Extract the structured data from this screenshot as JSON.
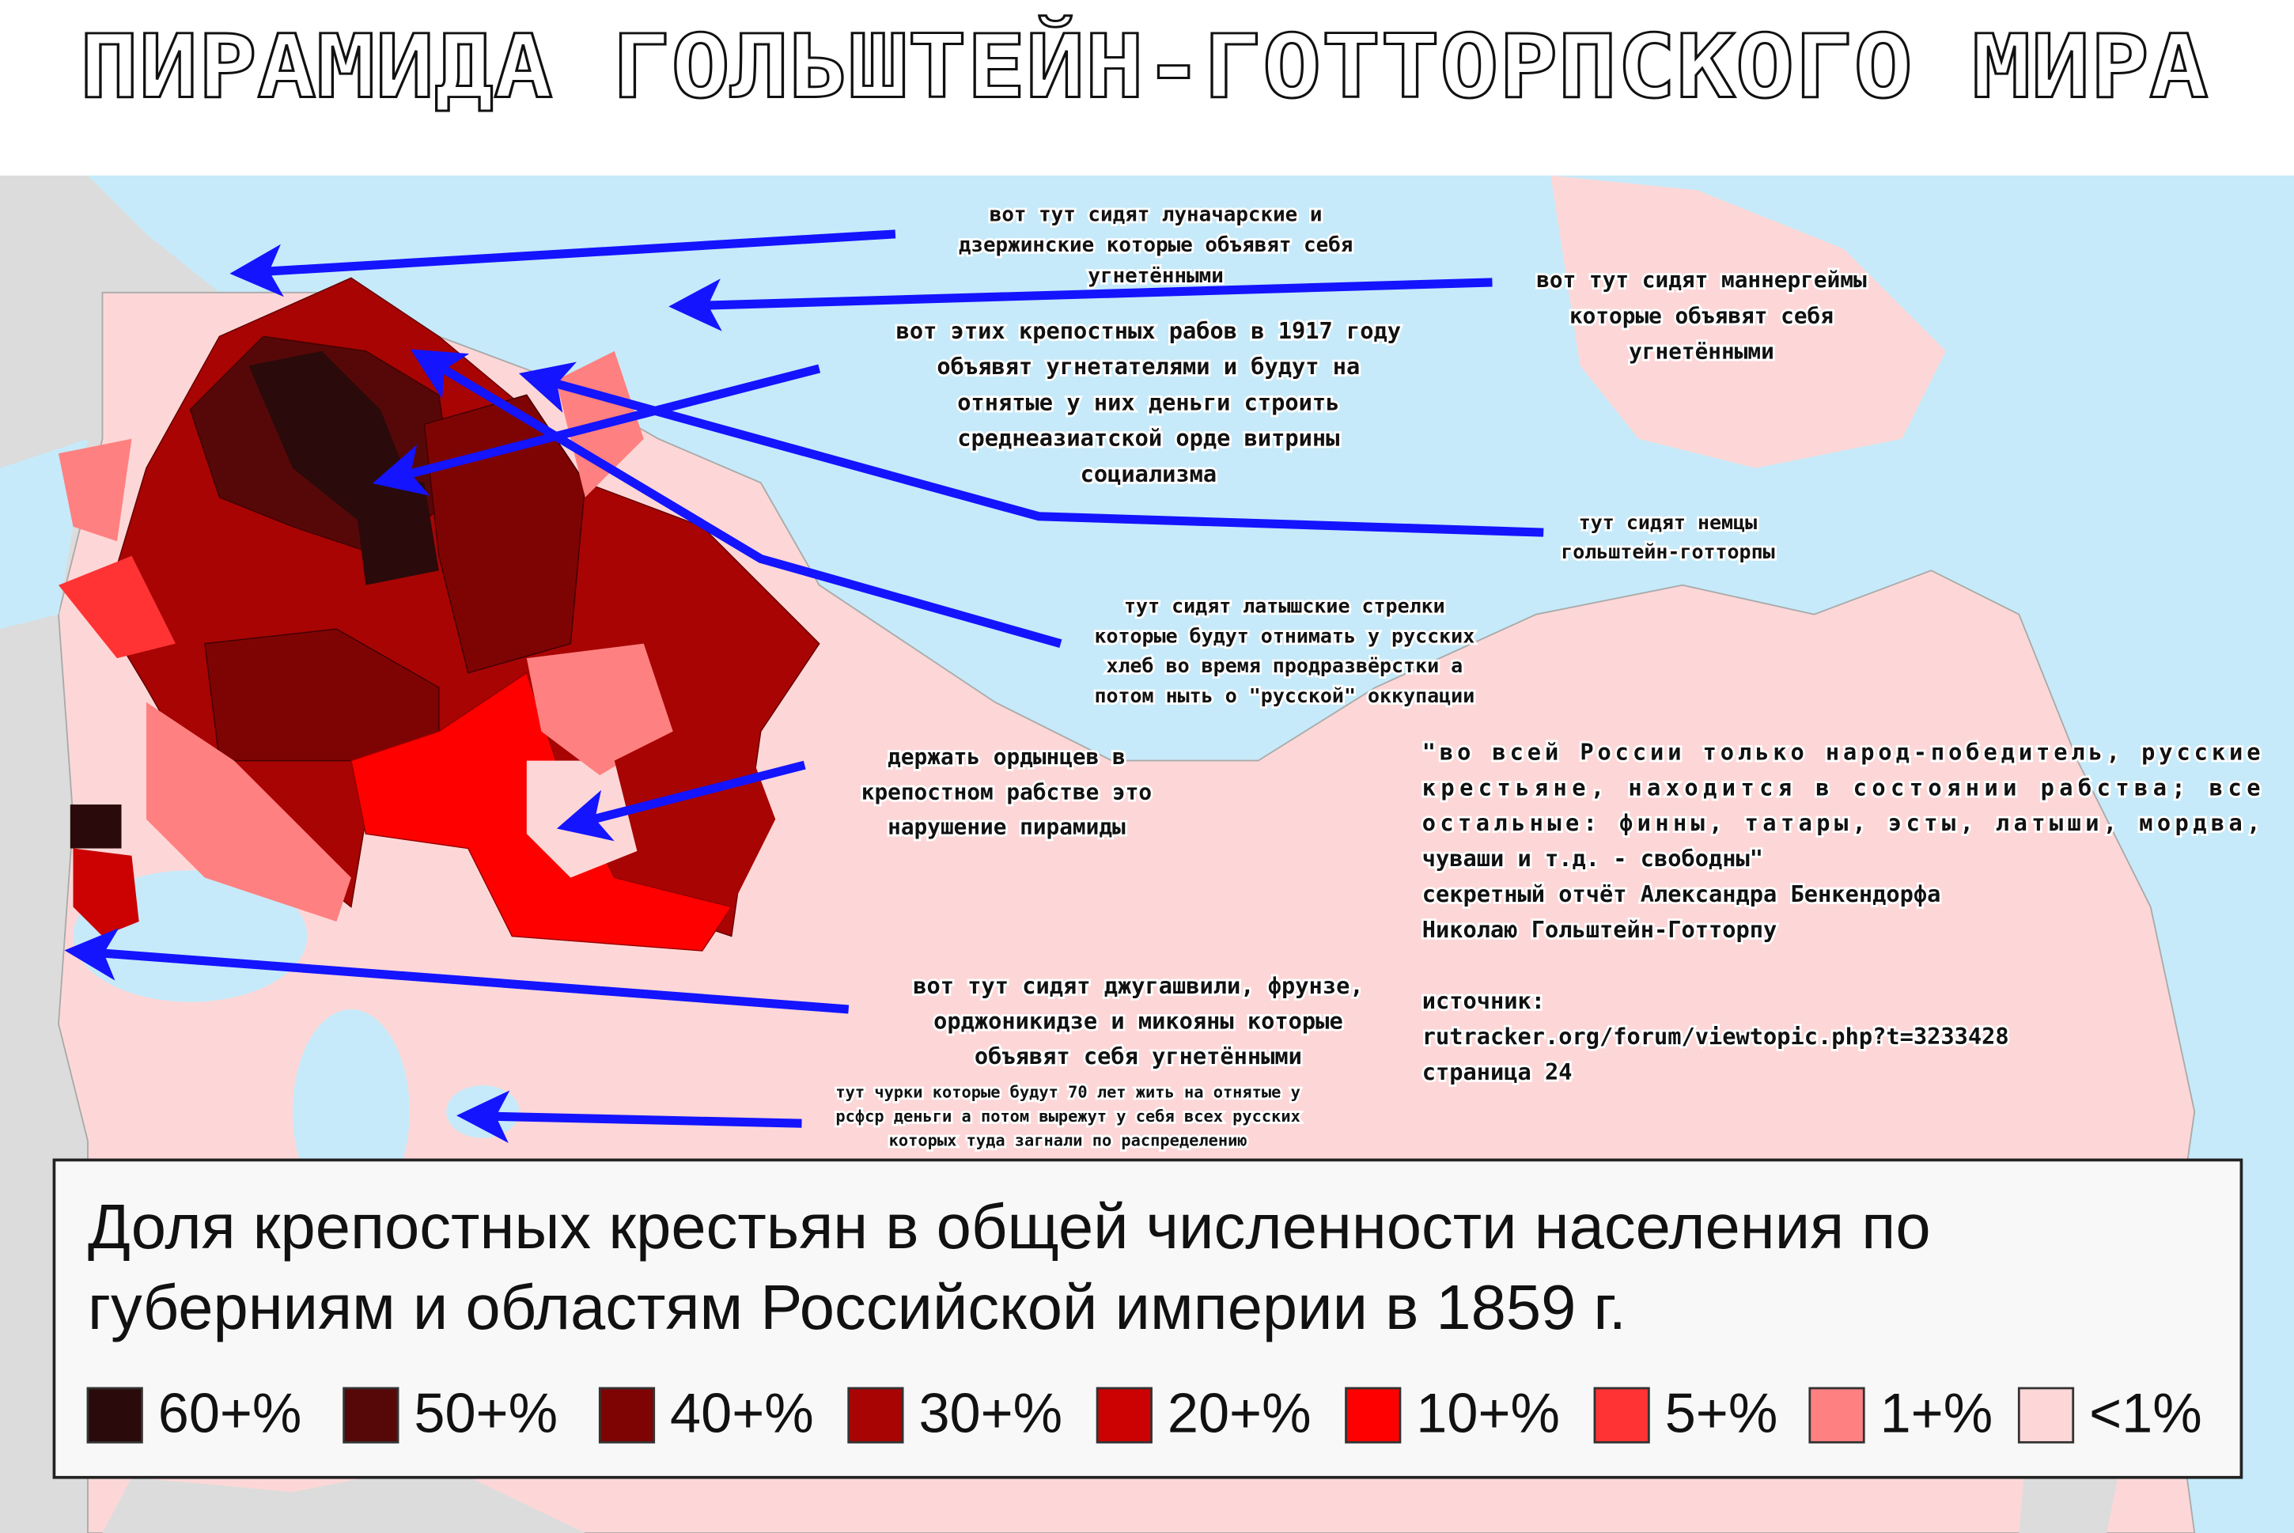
{
  "title": "ПИРАМИДА ГОЛЬШТЕЙН-ГОТТОРПСКОГО МИРА",
  "annotations": [
    {
      "lines": [
        "вот тут сидят луначарские и",
        "дзержинские которые объявят себя",
        "угнетёнными"
      ]
    },
    {
      "lines": [
        "вот тут сидят маннергеймы",
        "которые объявят себя",
        "угнетёнными"
      ]
    },
    {
      "lines": [
        "вот этих крепостных рабов в 1917 году",
        "объявят угнетателями и будут на",
        "отнятые у них деньги строить",
        "среднеазиатской орде витрины",
        "социализма"
      ]
    },
    {
      "lines": [
        "тут сидят немцы",
        "гольштейн-готторпы"
      ]
    },
    {
      "lines": [
        "тут сидят латышские стрелки",
        "которые будут отнимать у русских",
        "хлеб во время продразвёрстки а",
        "потом ныть о \"русской\" оккупации"
      ]
    },
    {
      "lines": [
        "держать ордынцев в",
        "крепостном рабстве это",
        "нарушение пирамиды"
      ]
    },
    {
      "lines": [
        "вот тут сидят джугашвили, фрунзе,",
        "орджоникидзе и микояны которые",
        "объявят себя угнетёнными"
      ]
    },
    {
      "lines": [
        "тут чурки которые будут 70 лет жить на отнятые у",
        "рсфср деньги а потом вырежут у себя всех русских",
        "которых туда загнали по распределению"
      ]
    }
  ],
  "quote": {
    "lines": [
      "\"во всей России только народ-победитель, русские",
      "крестьяне, находится в состоянии рабства; все",
      "остальные: финны, татары, эсты, латыши, мордва,",
      "чуваши и т.д. - свободны\"",
      "секретный отчёт Александра Бенкендорфа",
      "Николаю Гольштейн-Готторпу",
      "",
      "источник:",
      "rutracker.org/forum/viewtopic.php?t=3233428",
      "страница 24"
    ]
  },
  "legend": {
    "title_lines": [
      "Доля крепостных крестьян в общей численности населения по",
      "губерниям и областям Российской империи в 1859 г."
    ],
    "items": [
      {
        "label": "60+%",
        "color": "#2a0a0a"
      },
      {
        "label": "50+%",
        "color": "#560808"
      },
      {
        "label": "40+%",
        "color": "#7e0404"
      },
      {
        "label": "30+%",
        "color": "#a80404"
      },
      {
        "label": "20+%",
        "color": "#cc0202"
      },
      {
        "label": "10+%",
        "color": "#ff0000"
      },
      {
        "label": "5+%",
        "color": "#ff3333"
      },
      {
        "label": "1+%",
        "color": "#ff8080"
      },
      {
        "label": "<1%",
        "color": "#fdd7d7"
      }
    ]
  }
}
